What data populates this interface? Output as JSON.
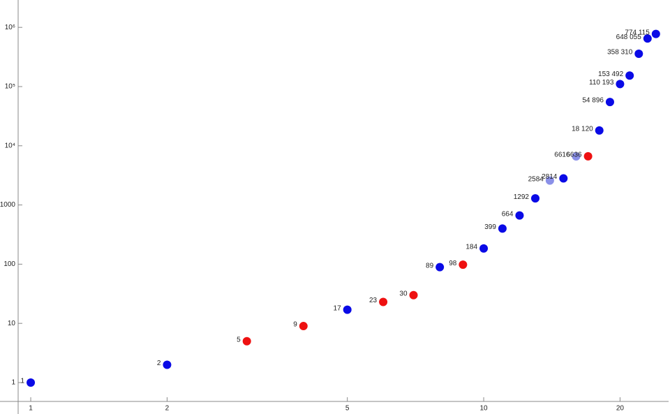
{
  "chart_data": {
    "type": "scatter",
    "log_x": true,
    "log_y": true,
    "x": [
      1,
      2,
      3,
      4,
      5,
      6,
      7,
      8,
      9,
      10,
      11,
      12,
      13,
      14,
      15,
      16,
      17,
      18,
      19,
      20,
      21,
      22,
      23,
      24
    ],
    "values": [
      1,
      2,
      5,
      9,
      17,
      23,
      30,
      89,
      98,
      184,
      399,
      664,
      1292,
      2584,
      2814,
      6616,
      6636,
      18120,
      54896,
      110193,
      153492,
      358310,
      648055,
      774115
    ],
    "value_labels": [
      "1",
      "2",
      "5",
      "9",
      "17",
      "23",
      "30",
      "89",
      "98",
      "184",
      "399",
      "664",
      "1292",
      "2584",
      "2814",
      "6616",
      "6636",
      "18 120",
      "54 896",
      "110 193",
      "153 492",
      "358 310",
      "648 055",
      "774 115"
    ],
    "colors": [
      "#0a0ae6",
      "#0a0ae6",
      "#ee1111",
      "#ee1111",
      "#0a0ae6",
      "#ee1111",
      "#ee1111",
      "#0a0ae6",
      "#ee1111",
      "#0a0ae6",
      "#0a0ae6",
      "#0a0ae6",
      "#0a0ae6",
      "#8a90e8",
      "#0a0ae6",
      "#8a90e8",
      "#ee1111",
      "#0a0ae6",
      "#0a0ae6",
      "#0a0ae6",
      "#0a0ae6",
      "#0a0ae6",
      "#0a0ae6",
      "#0a0ae6"
    ],
    "xlim": [
      0.938,
      25.6
    ],
    "ylim": [
      0.48,
      2900000
    ],
    "xticks": [
      1,
      2,
      5,
      10,
      20
    ],
    "yticks": [
      1,
      10,
      100,
      1000,
      {
        "value": 10000,
        "label": "10⁴"
      },
      {
        "value": 100000,
        "label": "10⁵"
      },
      {
        "value": 1000000,
        "label": "10⁶"
      }
    ]
  }
}
